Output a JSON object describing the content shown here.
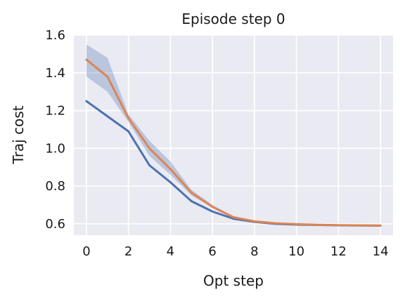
{
  "chart_data": {
    "type": "line",
    "title": "Episode step 0",
    "xlabel": "Opt step",
    "ylabel": "Traj cost",
    "xlim": [
      -0.6,
      14.6
    ],
    "ylim": [
      0.54,
      1.6
    ],
    "xticks": [
      "0",
      "2",
      "4",
      "6",
      "8",
      "10",
      "12",
      "14"
    ],
    "yticks": [
      "0.6",
      "0.8",
      "1.0",
      "1.2",
      "1.4",
      "1.6"
    ],
    "grid": true,
    "background": "#eaeaf2",
    "x": [
      0,
      1,
      2,
      3,
      4,
      5,
      6,
      7,
      8,
      9,
      10,
      11,
      12,
      13,
      14
    ],
    "series": [
      {
        "color": "#4c72b0",
        "values": [
          1.25,
          1.17,
          1.09,
          0.91,
          0.82,
          0.72,
          0.665,
          0.627,
          0.61,
          0.6,
          0.596,
          0.594,
          0.592,
          0.591,
          0.59
        ]
      },
      {
        "color": "#dd8452",
        "values": [
          1.47,
          1.38,
          1.16,
          1.0,
          0.89,
          0.765,
          0.69,
          0.635,
          0.613,
          0.603,
          0.598,
          0.595,
          0.593,
          0.592,
          0.591
        ]
      }
    ],
    "band": {
      "series_index": 1,
      "color": "#4c72b0",
      "lower": [
        1.38,
        1.3,
        1.14,
        0.96,
        0.86,
        0.75,
        0.685,
        0.63,
        0.61,
        0.6,
        0.595,
        0.593,
        0.591,
        0.59,
        0.589
      ],
      "upper": [
        1.55,
        1.48,
        1.18,
        1.04,
        0.93,
        0.78,
        0.7,
        0.64,
        0.616,
        0.606,
        0.601,
        0.597,
        0.595,
        0.594,
        0.593
      ]
    }
  }
}
